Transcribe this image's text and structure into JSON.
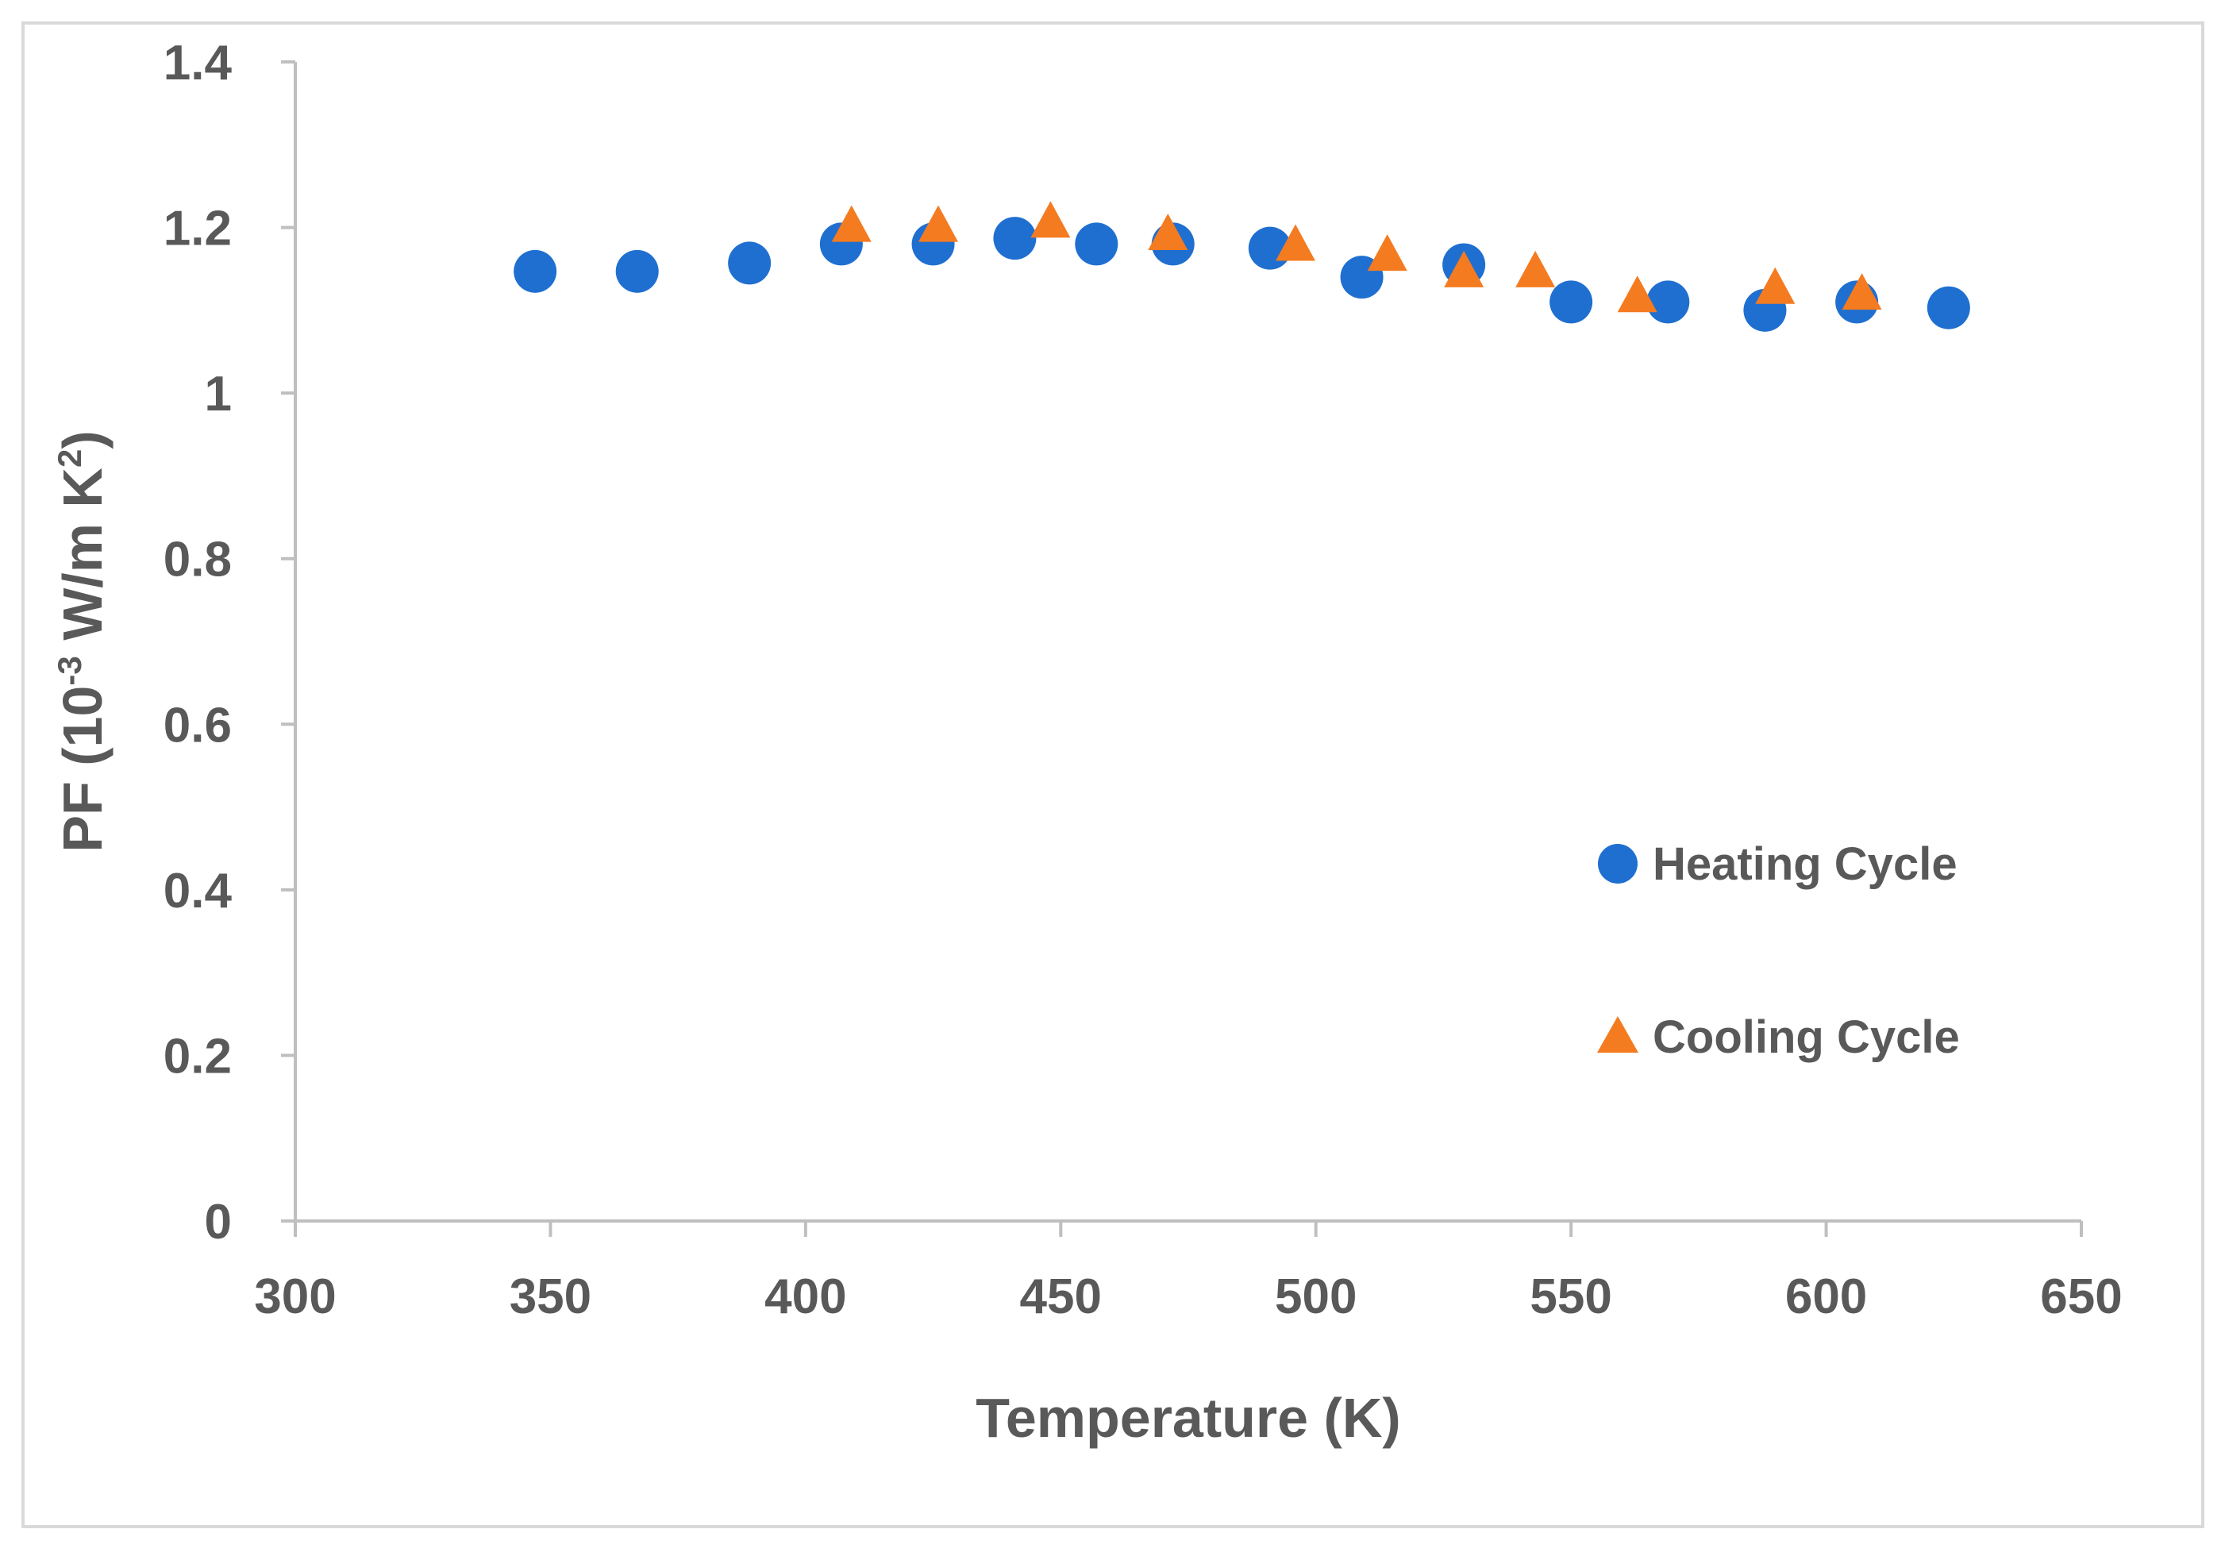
{
  "chart_data": {
    "type": "scatter",
    "title": "",
    "xlabel": "Temperature (K)",
    "ylabel_parts": {
      "prefix": "PF (10",
      "exp1": "-3",
      "middle": " W/m K",
      "exp2": "2",
      "suffix": ")"
    },
    "xlim": [
      300,
      650
    ],
    "ylim": [
      0,
      1.4
    ],
    "xticks": [
      300,
      350,
      400,
      450,
      500,
      550,
      600,
      650
    ],
    "yticks": [
      0,
      0.2,
      0.4,
      0.6,
      0.8,
      1,
      1.2,
      1.4
    ],
    "xtick_labels": [
      "300",
      "350",
      "400",
      "450",
      "500",
      "550",
      "600",
      "650"
    ],
    "ytick_labels": [
      "0",
      "0.2",
      "0.4",
      "0.6",
      "0.8",
      "1",
      "1.2",
      "1.4"
    ],
    "grid": false,
    "legend_position": "right",
    "series": [
      {
        "name": "Heating Cycle",
        "marker": "circle",
        "color": "#1f6fd0",
        "x": [
          347,
          367,
          389,
          407,
          425,
          441,
          457,
          472,
          491,
          509,
          529,
          550,
          569,
          588,
          606,
          624
        ],
        "y": [
          1.147,
          1.147,
          1.157,
          1.18,
          1.18,
          1.187,
          1.18,
          1.18,
          1.175,
          1.14,
          1.155,
          1.11,
          1.11,
          1.1,
          1.11,
          1.103
        ]
      },
      {
        "name": "Cooling Cycle",
        "marker": "triangle",
        "color": "#f47b20",
        "x": [
          409,
          426,
          448,
          471,
          496,
          514,
          529,
          543,
          563,
          590,
          607
        ],
        "y": [
          1.2,
          1.2,
          1.205,
          1.19,
          1.177,
          1.165,
          1.145,
          1.145,
          1.115,
          1.125,
          1.118
        ]
      }
    ]
  }
}
